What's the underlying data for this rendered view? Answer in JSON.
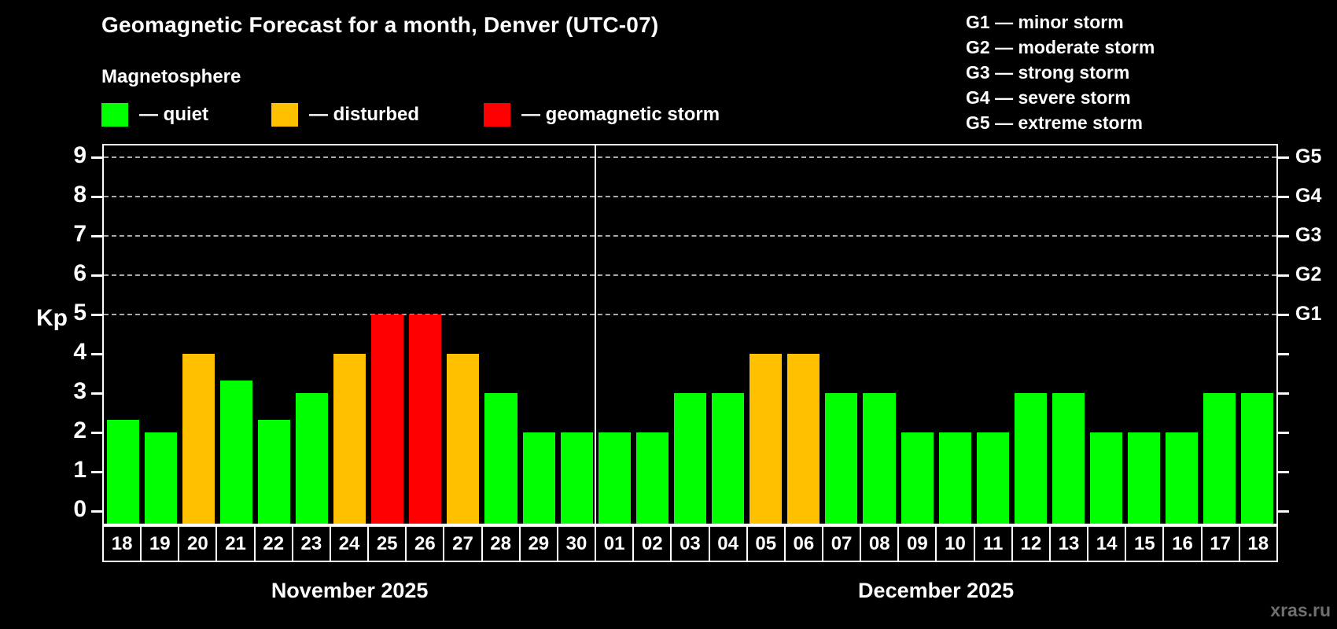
{
  "title": "Geomagnetic Forecast for a month, Denver (UTC-07)",
  "subtitle": "Magnetosphere",
  "legend": {
    "items": [
      {
        "key": "quiet",
        "label": "— quiet"
      },
      {
        "key": "disturbed",
        "label": "— disturbed"
      },
      {
        "key": "storm",
        "label": "— geomagnetic storm"
      }
    ]
  },
  "g_scale_legend": {
    "lines": [
      "G1 — minor storm",
      "G2 — moderate storm",
      "G3 — strong storm",
      "G4 — severe storm",
      "G5 — extreme storm"
    ]
  },
  "watermark": "xras.ru",
  "chart_data": {
    "type": "bar",
    "title": "Geomagnetic Forecast for a month, Denver (UTC-07)",
    "ylabel": "Kp",
    "xlabel": "",
    "ylim": [
      0,
      9.35
    ],
    "yticks": [
      0,
      1,
      2,
      3,
      4,
      5,
      6,
      7,
      8,
      9
    ],
    "grid_levels": [
      5,
      6,
      7,
      8,
      9
    ],
    "grid": "dashed",
    "legend_position": "top",
    "right_axis_labels": [
      {
        "label": "G1",
        "kp": 5
      },
      {
        "label": "G2",
        "kp": 6
      },
      {
        "label": "G3",
        "kp": 7
      },
      {
        "label": "G4",
        "kp": 8
      },
      {
        "label": "G5",
        "kp": 9
      }
    ],
    "status_colors": {
      "quiet": "#00ff00",
      "disturbed": "#ffc000",
      "storm": "#ff0000"
    },
    "months": [
      {
        "name": "November 2025",
        "points": [
          {
            "day": "18",
            "kp": 2.33,
            "status": "quiet"
          },
          {
            "day": "19",
            "kp": 2,
            "status": "quiet"
          },
          {
            "day": "20",
            "kp": 4,
            "status": "disturbed"
          },
          {
            "day": "21",
            "kp": 3.33,
            "status": "quiet"
          },
          {
            "day": "22",
            "kp": 2.33,
            "status": "quiet"
          },
          {
            "day": "23",
            "kp": 3,
            "status": "quiet"
          },
          {
            "day": "24",
            "kp": 4,
            "status": "disturbed"
          },
          {
            "day": "25",
            "kp": 5,
            "status": "storm"
          },
          {
            "day": "26",
            "kp": 5,
            "status": "storm"
          },
          {
            "day": "27",
            "kp": 4,
            "status": "disturbed"
          },
          {
            "day": "28",
            "kp": 3,
            "status": "quiet"
          },
          {
            "day": "29",
            "kp": 2,
            "status": "quiet"
          },
          {
            "day": "30",
            "kp": 2,
            "status": "quiet"
          }
        ]
      },
      {
        "name": "December 2025",
        "points": [
          {
            "day": "01",
            "kp": 2,
            "status": "quiet"
          },
          {
            "day": "02",
            "kp": 2,
            "status": "quiet"
          },
          {
            "day": "03",
            "kp": 3,
            "status": "quiet"
          },
          {
            "day": "04",
            "kp": 3,
            "status": "quiet"
          },
          {
            "day": "05",
            "kp": 4,
            "status": "disturbed"
          },
          {
            "day": "06",
            "kp": 4,
            "status": "disturbed"
          },
          {
            "day": "07",
            "kp": 3,
            "status": "quiet"
          },
          {
            "day": "08",
            "kp": 3,
            "status": "quiet"
          },
          {
            "day": "09",
            "kp": 2,
            "status": "quiet"
          },
          {
            "day": "10",
            "kp": 2,
            "status": "quiet"
          },
          {
            "day": "11",
            "kp": 2,
            "status": "quiet"
          },
          {
            "day": "12",
            "kp": 3,
            "status": "quiet"
          },
          {
            "day": "13",
            "kp": 3,
            "status": "quiet"
          },
          {
            "day": "14",
            "kp": 2,
            "status": "quiet"
          },
          {
            "day": "15",
            "kp": 2,
            "status": "quiet"
          },
          {
            "day": "16",
            "kp": 2,
            "status": "quiet"
          },
          {
            "day": "17",
            "kp": 3,
            "status": "quiet"
          },
          {
            "day": "18",
            "kp": 3,
            "status": "quiet"
          }
        ]
      }
    ]
  }
}
